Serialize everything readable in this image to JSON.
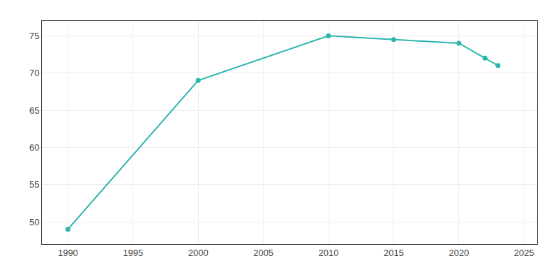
{
  "chart_data": {
    "type": "line",
    "x": [
      1990,
      2000,
      2010,
      2015,
      2020,
      2022,
      2023
    ],
    "values": [
      49,
      69,
      75,
      74.5,
      74,
      72,
      71
    ],
    "color": "#2ab5b0",
    "marker": "circle",
    "xlim": [
      1988,
      2026
    ],
    "ylim": [
      47,
      77
    ],
    "xticks": [
      1990,
      1995,
      2000,
      2005,
      2010,
      2015,
      2020,
      2025
    ],
    "yticks": [
      50,
      55,
      60,
      65,
      70,
      75
    ],
    "grid": true
  }
}
